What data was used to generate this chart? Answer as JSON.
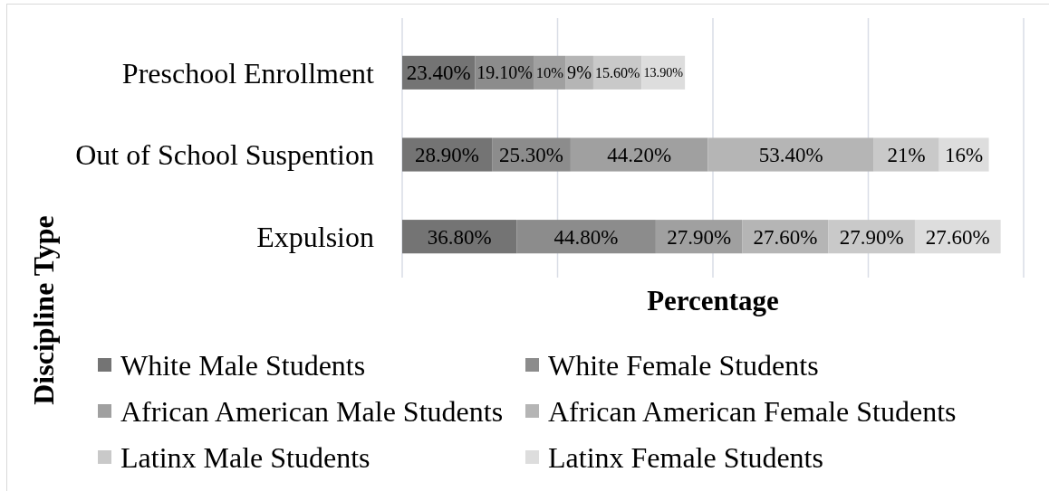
{
  "chart_data": {
    "type": "bar",
    "orientation": "horizontal",
    "stacked": true,
    "categories": [
      "Preschool Enrollment",
      "Out of School Suspention",
      "Expulsion"
    ],
    "xlabel": "Percentage",
    "ylabel": "Discipline Type",
    "xlim": [
      0,
      200
    ],
    "xticks": [
      {
        "value": 0,
        "label": null
      },
      {
        "value": 50,
        "label": null
      },
      {
        "value": 100,
        "label": null
      },
      {
        "value": 150,
        "label": null
      },
      {
        "value": 200,
        "label": null
      }
    ],
    "tick_labels": "y",
    "grid": "x",
    "legend": "bottom",
    "series": [
      {
        "name": "White Male Students",
        "color": "#747474",
        "values": [
          23.4,
          28.9,
          36.8
        ],
        "value_labels": [
          "23.40%",
          "28.90%",
          "36.80%"
        ]
      },
      {
        "name": "White Female Students",
        "color": "#8c8c8c",
        "values": [
          19.1,
          25.3,
          44.8
        ],
        "value_labels": [
          "19.10%",
          "25.30%",
          "44.80%"
        ]
      },
      {
        "name": "African American Male Students",
        "color": "#a0a0a0",
        "values": [
          10,
          44.2,
          27.9
        ],
        "value_labels": [
          "10%",
          "44.20%",
          "27.90%"
        ]
      },
      {
        "name": "African American Female Students",
        "color": "#b5b5b5",
        "values": [
          9,
          53.4,
          27.6
        ],
        "value_labels": [
          "9%",
          "53.40%",
          "27.60%"
        ]
      },
      {
        "name": "Latinx Male Students",
        "color": "#c9c9c9",
        "values": [
          15.6,
          21,
          27.9
        ],
        "value_labels": [
          "15.60%",
          "21%",
          "27.90%"
        ]
      },
      {
        "name": "Latinx Female Students",
        "color": "#dddddd",
        "values": [
          13.9,
          16,
          27.6
        ],
        "value_labels": [
          "13.90%",
          "16%",
          "27.60%"
        ]
      }
    ]
  }
}
